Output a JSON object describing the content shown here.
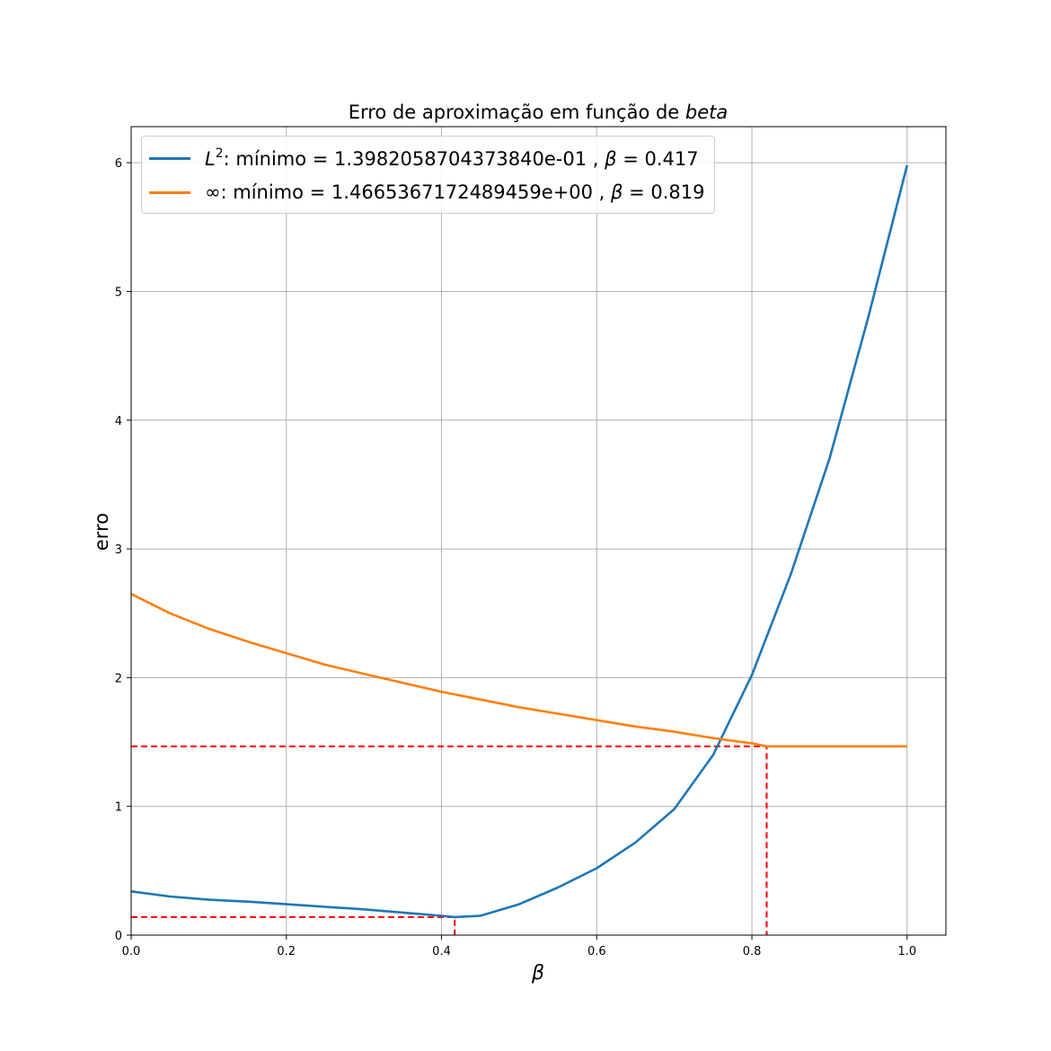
{
  "chart_data": {
    "type": "line",
    "title_prefix": "Erro de aproximação em função de ",
    "title_italic": "beta",
    "xlabel": "β",
    "ylabel": "erro",
    "xlim": [
      0,
      1.05
    ],
    "ylim": [
      0,
      6.28
    ],
    "xticks": [
      "0.0",
      "0.2",
      "0.4",
      "0.6",
      "0.8",
      "1.0"
    ],
    "yticks": [
      "0",
      "1",
      "2",
      "3",
      "4",
      "5",
      "6"
    ],
    "grid": true,
    "legend_placement": "top-left",
    "series": [
      {
        "name": "L2",
        "color": "#1f77b4",
        "x": [
          0.0,
          0.05,
          0.1,
          0.15,
          0.2,
          0.25,
          0.3,
          0.35,
          0.4,
          0.417,
          0.45,
          0.5,
          0.55,
          0.6,
          0.65,
          0.7,
          0.75,
          0.8,
          0.85,
          0.9,
          0.95,
          1.0
        ],
        "y": [
          0.34,
          0.3,
          0.275,
          0.26,
          0.24,
          0.22,
          0.2,
          0.175,
          0.15,
          0.14,
          0.15,
          0.24,
          0.37,
          0.52,
          0.72,
          0.98,
          1.4,
          2.02,
          2.8,
          3.7,
          4.8,
          5.98
        ]
      },
      {
        "name": "∞",
        "color": "#ff7f0e",
        "x": [
          0.0,
          0.05,
          0.1,
          0.15,
          0.2,
          0.25,
          0.3,
          0.35,
          0.4,
          0.45,
          0.5,
          0.55,
          0.6,
          0.65,
          0.7,
          0.75,
          0.8,
          0.819,
          0.85,
          0.9,
          0.95,
          1.0
        ],
        "y": [
          2.65,
          2.5,
          2.38,
          2.28,
          2.19,
          2.1,
          2.03,
          1.96,
          1.89,
          1.83,
          1.77,
          1.72,
          1.67,
          1.62,
          1.58,
          1.53,
          1.49,
          1.4665,
          1.4665,
          1.4665,
          1.4665,
          1.4665
        ]
      }
    ],
    "markers": [
      {
        "x": 0.417,
        "y": 0.1398,
        "color": "red"
      },
      {
        "x": 0.819,
        "y": 1.4665,
        "color": "red"
      }
    ],
    "legend": [
      {
        "label_italic": "L",
        "label_sup": "2",
        "label_text": ": mínimo = 1.3982058704373840e-01 , ",
        "beta_symbol": "β",
        "beta_text": " = 0.417"
      },
      {
        "label_italic": "",
        "label_sup": "",
        "label_text": "∞: mínimo = 1.4665367172489459e+00 , ",
        "beta_symbol": "β",
        "beta_text": " = 0.819"
      }
    ]
  }
}
